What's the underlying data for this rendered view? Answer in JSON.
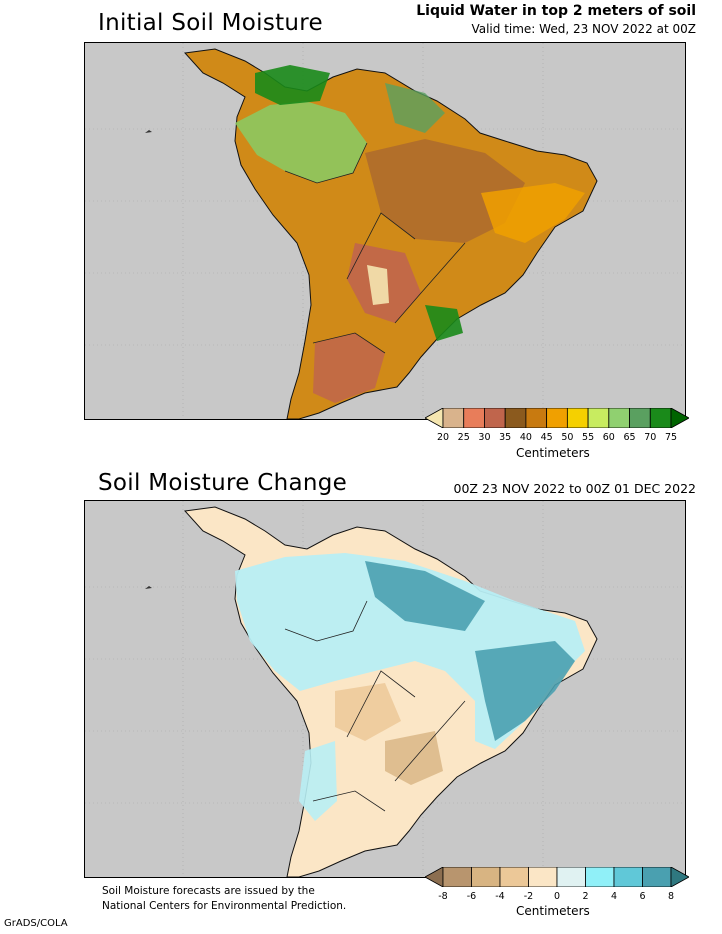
{
  "panel1": {
    "title": "Initial Soil Moisture",
    "header": "Liquid Water in top 2 meters of soil",
    "valid": "Valid time: Wed, 23 NOV 2022 at 00Z",
    "colorbar": {
      "ticks": [
        "20",
        "25",
        "30",
        "35",
        "40",
        "45",
        "50",
        "55",
        "60",
        "65",
        "70",
        "75"
      ],
      "colors": [
        "#f5e6b0",
        "#d9b38c",
        "#e87d5a",
        "#c0654c",
        "#8b5a1e",
        "#c87a10",
        "#f0a000",
        "#f5d000",
        "#c8ec60",
        "#90d070",
        "#5aa060",
        "#1a8a1a",
        "#006400"
      ],
      "unit": "Centimeters"
    }
  },
  "panel2": {
    "title": "Soil Moisture Change",
    "period": "00Z 23 NOV 2022 to 00Z 01 DEC 2022",
    "colorbar": {
      "ticks": [
        "-8",
        "-6",
        "-4",
        "-2",
        "0",
        "2",
        "4",
        "6",
        "8"
      ],
      "colors": [
        "#8c6e50",
        "#b8956e",
        "#d8b482",
        "#ecc898",
        "#fbe6c6",
        "#e0f2f2",
        "#90f0f8",
        "#60c8d8",
        "#4aa0b0",
        "#2f7880"
      ],
      "unit": "Centimeters"
    }
  },
  "footer": {
    "note_line1": "Soil Moisture forecasts are issued by the",
    "note_line2": "National Centers for Environmental Prediction.",
    "credit": "GrADS/COLA"
  }
}
